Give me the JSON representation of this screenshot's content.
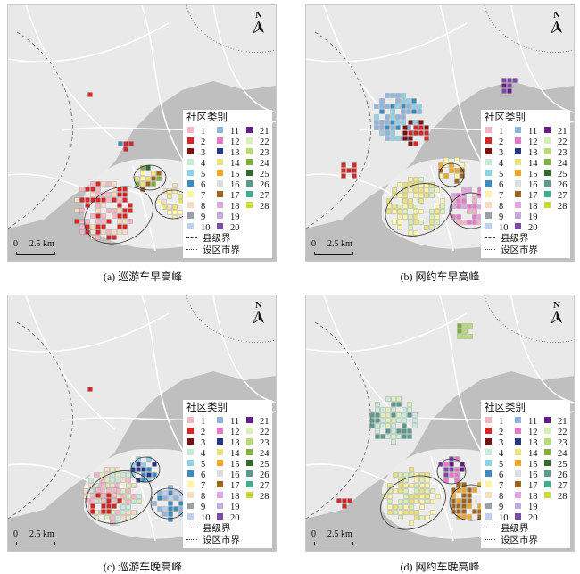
{
  "panels": [
    {
      "id": "a",
      "caption": "(a) 巡游车早高峰"
    },
    {
      "id": "b",
      "caption": "(b) 网约车早高峰"
    },
    {
      "id": "c",
      "caption": "(c) 巡游车晚高峰"
    },
    {
      "id": "d",
      "caption": "(d) 网约车晚高峰"
    }
  ],
  "legend": {
    "title": "社区类别",
    "classes": [
      {
        "label": "1",
        "color": "#f4b6c2"
      },
      {
        "label": "2",
        "color": "#d62728"
      },
      {
        "label": "3",
        "color": "#7b1010"
      },
      {
        "label": "4",
        "color": "#c7e9d9"
      },
      {
        "label": "5",
        "color": "#8dd3e8"
      },
      {
        "label": "6",
        "color": "#3a8cc1"
      },
      {
        "label": "7",
        "color": "#fff3a8"
      },
      {
        "label": "8",
        "color": "#f7dcc0"
      },
      {
        "label": "9",
        "color": "#9aa0a6"
      },
      {
        "label": "10",
        "color": "#bcd0f0"
      },
      {
        "label": "11",
        "color": "#8fb4dd"
      },
      {
        "label": "12",
        "color": "#e778c9"
      },
      {
        "label": "13",
        "color": "#26358a"
      },
      {
        "label": "14",
        "color": "#ebe27a"
      },
      {
        "label": "15",
        "color": "#f5a623"
      },
      {
        "label": "16",
        "color": "#dcdcdc"
      },
      {
        "label": "17",
        "color": "#a0651c"
      },
      {
        "label": "18",
        "color": "#e2a3e2"
      },
      {
        "label": "19",
        "color": "#c6a9e0"
      },
      {
        "label": "20",
        "color": "#7a4aa8"
      },
      {
        "label": "21",
        "color": "#6a1b8a"
      },
      {
        "label": "22",
        "color": "#d9efb8"
      },
      {
        "label": "23",
        "color": "#b7dc76"
      },
      {
        "label": "24",
        "color": "#7fb13a"
      },
      {
        "label": "25",
        "color": "#2f6b2a"
      },
      {
        "label": "26",
        "color": "#5b9a8b"
      },
      {
        "label": "27",
        "color": "#3bb08f"
      },
      {
        "label": "28",
        "color": "#c9d936"
      }
    ],
    "county_boundary": "县级界",
    "city_boundary": "设区市界"
  },
  "scale": {
    "zero": "0",
    "label": "2.5 km"
  },
  "north": "N"
}
